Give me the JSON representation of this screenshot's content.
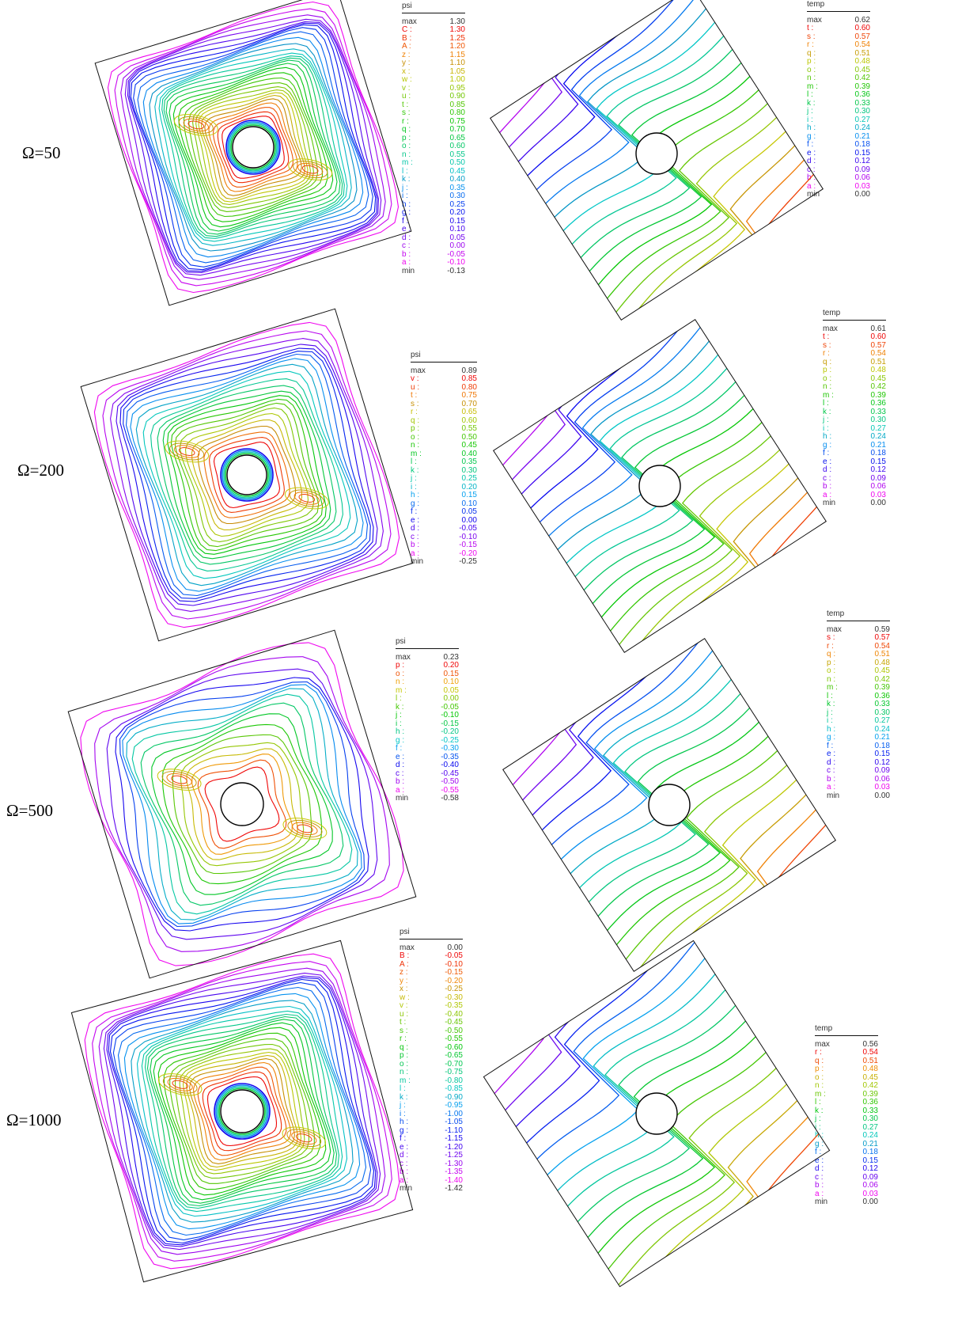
{
  "rows": [
    {
      "label": "Ω=50",
      "psi_legend": {
        "title": "psi",
        "entries": [
          {
            "key": "max",
            "value": "1.30"
          },
          {
            "key": "C :",
            "value": "1.30"
          },
          {
            "key": "B :",
            "value": "1.25"
          },
          {
            "key": "A :",
            "value": "1.20"
          },
          {
            "key": "z :",
            "value": "1.15"
          },
          {
            "key": "y :",
            "value": "1.10"
          },
          {
            "key": "x :",
            "value": "1.05"
          },
          {
            "key": "w :",
            "value": "1.00"
          },
          {
            "key": "v :",
            "value": "0.95"
          },
          {
            "key": "u :",
            "value": "0.90"
          },
          {
            "key": "t :",
            "value": "0.85"
          },
          {
            "key": "s :",
            "value": "0.80"
          },
          {
            "key": "r :",
            "value": "0.75"
          },
          {
            "key": "q :",
            "value": "0.70"
          },
          {
            "key": "p :",
            "value": "0.65"
          },
          {
            "key": "o :",
            "value": "0.60"
          },
          {
            "key": "n :",
            "value": "0.55"
          },
          {
            "key": "m :",
            "value": "0.50"
          },
          {
            "key": "l :",
            "value": "0.45"
          },
          {
            "key": "k :",
            "value": "0.40"
          },
          {
            "key": "j :",
            "value": "0.35"
          },
          {
            "key": "i :",
            "value": "0.30"
          },
          {
            "key": "h :",
            "value": "0.25"
          },
          {
            "key": "g :",
            "value": "0.20"
          },
          {
            "key": "f :",
            "value": "0.15"
          },
          {
            "key": "e :",
            "value": "0.10"
          },
          {
            "key": "d :",
            "value": "0.05"
          },
          {
            "key": "c :",
            "value": "0.00"
          },
          {
            "key": "b :",
            "value": "-0.05"
          },
          {
            "key": "a :",
            "value": "-0.10"
          },
          {
            "key": "min",
            "value": "-0.13"
          }
        ]
      },
      "temp_legend": {
        "title": "temp",
        "entries": [
          {
            "key": "max",
            "value": "0.62"
          },
          {
            "key": "t :",
            "value": "0.60"
          },
          {
            "key": "s :",
            "value": "0.57"
          },
          {
            "key": "r :",
            "value": "0.54"
          },
          {
            "key": "q :",
            "value": "0.51"
          },
          {
            "key": "p :",
            "value": "0.48"
          },
          {
            "key": "o :",
            "value": "0.45"
          },
          {
            "key": "n :",
            "value": "0.42"
          },
          {
            "key": "m :",
            "value": "0.39"
          },
          {
            "key": "l :",
            "value": "0.36"
          },
          {
            "key": "k :",
            "value": "0.33"
          },
          {
            "key": "j :",
            "value": "0.30"
          },
          {
            "key": "i :",
            "value": "0.27"
          },
          {
            "key": "h :",
            "value": "0.24"
          },
          {
            "key": "g :",
            "value": "0.21"
          },
          {
            "key": "f :",
            "value": "0.18"
          },
          {
            "key": "e :",
            "value": "0.15"
          },
          {
            "key": "d :",
            "value": "0.12"
          },
          {
            "key": "c :",
            "value": "0.09"
          },
          {
            "key": "b :",
            "value": "0.06"
          },
          {
            "key": "a :",
            "value": "0.03"
          },
          {
            "key": "min",
            "value": "0.00"
          }
        ]
      }
    },
    {
      "label": "Ω=200",
      "psi_legend": {
        "title": "psi",
        "entries": [
          {
            "key": "max",
            "value": "0.89"
          },
          {
            "key": "v :",
            "value": "0.85"
          },
          {
            "key": "u :",
            "value": "0.80"
          },
          {
            "key": "t :",
            "value": "0.75"
          },
          {
            "key": "s :",
            "value": "0.70"
          },
          {
            "key": "r :",
            "value": "0.65"
          },
          {
            "key": "q :",
            "value": "0.60"
          },
          {
            "key": "p :",
            "value": "0.55"
          },
          {
            "key": "o :",
            "value": "0.50"
          },
          {
            "key": "n :",
            "value": "0.45"
          },
          {
            "key": "m :",
            "value": "0.40"
          },
          {
            "key": "l :",
            "value": "0.35"
          },
          {
            "key": "k :",
            "value": "0.30"
          },
          {
            "key": "j :",
            "value": "0.25"
          },
          {
            "key": "i :",
            "value": "0.20"
          },
          {
            "key": "h :",
            "value": "0.15"
          },
          {
            "key": "g :",
            "value": "0.10"
          },
          {
            "key": "f :",
            "value": "0.05"
          },
          {
            "key": "e :",
            "value": "0.00"
          },
          {
            "key": "d :",
            "value": "-0.05"
          },
          {
            "key": "c :",
            "value": "-0.10"
          },
          {
            "key": "b :",
            "value": "-0.15"
          },
          {
            "key": "a :",
            "value": "-0.20"
          },
          {
            "key": "min",
            "value": "-0.25"
          }
        ]
      },
      "temp_legend": {
        "title": "temp",
        "entries": [
          {
            "key": "max",
            "value": "0.61"
          },
          {
            "key": "t :",
            "value": "0.60"
          },
          {
            "key": "s :",
            "value": "0.57"
          },
          {
            "key": "r :",
            "value": "0.54"
          },
          {
            "key": "q :",
            "value": "0.51"
          },
          {
            "key": "p :",
            "value": "0.48"
          },
          {
            "key": "o :",
            "value": "0.45"
          },
          {
            "key": "n :",
            "value": "0.42"
          },
          {
            "key": "m :",
            "value": "0.39"
          },
          {
            "key": "l :",
            "value": "0.36"
          },
          {
            "key": "k :",
            "value": "0.33"
          },
          {
            "key": "j :",
            "value": "0.30"
          },
          {
            "key": "i :",
            "value": "0.27"
          },
          {
            "key": "h :",
            "value": "0.24"
          },
          {
            "key": "g :",
            "value": "0.21"
          },
          {
            "key": "f :",
            "value": "0.18"
          },
          {
            "key": "e :",
            "value": "0.15"
          },
          {
            "key": "d :",
            "value": "0.12"
          },
          {
            "key": "c :",
            "value": "0.09"
          },
          {
            "key": "b :",
            "value": "0.06"
          },
          {
            "key": "a :",
            "value": "0.03"
          },
          {
            "key": "min",
            "value": "0.00"
          }
        ]
      }
    },
    {
      "label": "Ω=500",
      "psi_legend": {
        "title": "psi",
        "entries": [
          {
            "key": "max",
            "value": "0.23"
          },
          {
            "key": "p :",
            "value": "0.20"
          },
          {
            "key": "o :",
            "value": "0.15"
          },
          {
            "key": "n :",
            "value": "0.10"
          },
          {
            "key": "m :",
            "value": "0.05"
          },
          {
            "key": "l :",
            "value": "0.00"
          },
          {
            "key": "k :",
            "value": "-0.05"
          },
          {
            "key": "j :",
            "value": "-0.10"
          },
          {
            "key": "i :",
            "value": "-0.15"
          },
          {
            "key": "h :",
            "value": "-0.20"
          },
          {
            "key": "g :",
            "value": "-0.25"
          },
          {
            "key": "f :",
            "value": "-0.30"
          },
          {
            "key": "e :",
            "value": "-0.35"
          },
          {
            "key": "d :",
            "value": "-0.40"
          },
          {
            "key": "c :",
            "value": "-0.45"
          },
          {
            "key": "b :",
            "value": "-0.50"
          },
          {
            "key": "a :",
            "value": "-0.55"
          },
          {
            "key": "min",
            "value": "-0.58"
          }
        ]
      },
      "temp_legend": {
        "title": "temp",
        "entries": [
          {
            "key": "max",
            "value": "0.59"
          },
          {
            "key": "s :",
            "value": "0.57"
          },
          {
            "key": "r :",
            "value": "0.54"
          },
          {
            "key": "q :",
            "value": "0.51"
          },
          {
            "key": "p :",
            "value": "0.48"
          },
          {
            "key": "o :",
            "value": "0.45"
          },
          {
            "key": "n :",
            "value": "0.42"
          },
          {
            "key": "m :",
            "value": "0.39"
          },
          {
            "key": "l :",
            "value": "0.36"
          },
          {
            "key": "k :",
            "value": "0.33"
          },
          {
            "key": "j :",
            "value": "0.30"
          },
          {
            "key": "i :",
            "value": "0.27"
          },
          {
            "key": "h :",
            "value": "0.24"
          },
          {
            "key": "g :",
            "value": "0.21"
          },
          {
            "key": "f :",
            "value": "0.18"
          },
          {
            "key": "e :",
            "value": "0.15"
          },
          {
            "key": "d :",
            "value": "0.12"
          },
          {
            "key": "c :",
            "value": "0.09"
          },
          {
            "key": "b :",
            "value": "0.06"
          },
          {
            "key": "a :",
            "value": "0.03"
          },
          {
            "key": "min",
            "value": "0.00"
          }
        ]
      }
    },
    {
      "label": "Ω=1000",
      "psi_legend": {
        "title": "psi",
        "entries": [
          {
            "key": "max",
            "value": "0.00"
          },
          {
            "key": "B :",
            "value": "-0.05"
          },
          {
            "key": "A :",
            "value": "-0.10"
          },
          {
            "key": "z :",
            "value": "-0.15"
          },
          {
            "key": "y :",
            "value": "-0.20"
          },
          {
            "key": "x :",
            "value": "-0.25"
          },
          {
            "key": "w :",
            "value": "-0.30"
          },
          {
            "key": "v :",
            "value": "-0.35"
          },
          {
            "key": "u :",
            "value": "-0.40"
          },
          {
            "key": "t :",
            "value": "-0.45"
          },
          {
            "key": "s :",
            "value": "-0.50"
          },
          {
            "key": "r :",
            "value": "-0.55"
          },
          {
            "key": "q :",
            "value": "-0.60"
          },
          {
            "key": "p :",
            "value": "-0.65"
          },
          {
            "key": "o :",
            "value": "-0.70"
          },
          {
            "key": "n :",
            "value": "-0.75"
          },
          {
            "key": "m :",
            "value": "-0.80"
          },
          {
            "key": "l :",
            "value": "-0.85"
          },
          {
            "key": "k :",
            "value": "-0.90"
          },
          {
            "key": "j :",
            "value": "-0.95"
          },
          {
            "key": "i :",
            "value": "-1.00"
          },
          {
            "key": "h :",
            "value": "-1.05"
          },
          {
            "key": "g :",
            "value": "-1.10"
          },
          {
            "key": "f :",
            "value": "-1.15"
          },
          {
            "key": "e :",
            "value": "-1.20"
          },
          {
            "key": "d :",
            "value": "-1.25"
          },
          {
            "key": "c :",
            "value": "-1.30"
          },
          {
            "key": "b :",
            "value": "-1.35"
          },
          {
            "key": "a :",
            "value": "-1.40"
          },
          {
            "key": "min",
            "value": "-1.42"
          }
        ]
      },
      "temp_legend": {
        "title": "temp",
        "entries": [
          {
            "key": "max",
            "value": "0.56"
          },
          {
            "key": "r :",
            "value": "0.54"
          },
          {
            "key": "q :",
            "value": "0.51"
          },
          {
            "key": "p :",
            "value": "0.48"
          },
          {
            "key": "o :",
            "value": "0.45"
          },
          {
            "key": "n :",
            "value": "0.42"
          },
          {
            "key": "m :",
            "value": "0.39"
          },
          {
            "key": "l :",
            "value": "0.36"
          },
          {
            "key": "k :",
            "value": "0.33"
          },
          {
            "key": "j :",
            "value": "0.30"
          },
          {
            "key": "i :",
            "value": "0.27"
          },
          {
            "key": "h :",
            "value": "0.24"
          },
          {
            "key": "g :",
            "value": "0.21"
          },
          {
            "key": "f :",
            "value": "0.18"
          },
          {
            "key": "e :",
            "value": "0.15"
          },
          {
            "key": "d :",
            "value": "0.12"
          },
          {
            "key": "c :",
            "value": "0.09"
          },
          {
            "key": "b :",
            "value": "0.06"
          },
          {
            "key": "a :",
            "value": "0.03"
          },
          {
            "key": "min",
            "value": "0.00"
          }
        ]
      }
    }
  ]
}
